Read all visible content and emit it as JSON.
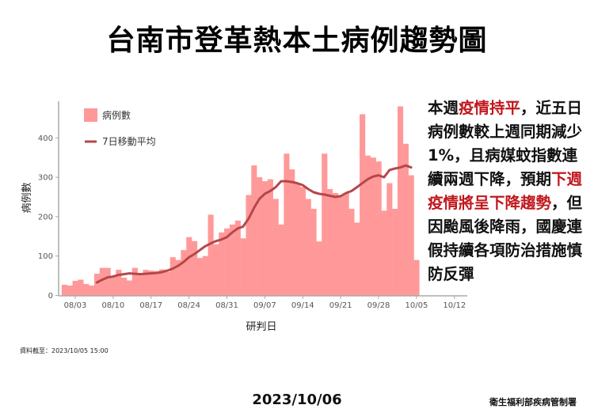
{
  "title": "台南市登革熱本土病例趨勢圖",
  "legend": {
    "bars_label": "病例數",
    "line_label": "7日移動平均"
  },
  "axes": {
    "y_title": "病例數",
    "x_title": "研判日",
    "y_ticks": [
      "0",
      "100",
      "200",
      "300",
      "400"
    ],
    "x_ticks": [
      "08/03",
      "08/10",
      "08/17",
      "08/24",
      "08/31",
      "09/07",
      "09/14",
      "09/21",
      "09/28",
      "10/05",
      "10/12"
    ]
  },
  "side_text": {
    "segments": [
      {
        "text": "本週",
        "red": false
      },
      {
        "text": "疫情持平",
        "red": true
      },
      {
        "text": "，近五日病例數較上週同期減少1%，且病媒蚊指數連續兩週下降，預期",
        "red": false
      },
      {
        "text": "下週疫情將呈下降趨勢",
        "red": true
      },
      {
        "text": "，但因颱風後降雨，國慶連假持續各項防治措施慎防反彈",
        "red": false
      }
    ]
  },
  "footer": {
    "source": "資料截至：2023/10/05 15:00",
    "date": "2023/10/06",
    "org": "衛生福利部疾病管制署"
  },
  "colors": {
    "bar": "#ff9999",
    "line": "#b5474b",
    "axis": "#aaaaaa",
    "highlight_text": "#c0171c"
  },
  "chart_data": {
    "type": "bar",
    "title": "台南市登革熱本土病例趨勢圖",
    "xlabel": "研判日",
    "ylabel": "病例數",
    "ylim": [
      0,
      460
    ],
    "grid": false,
    "legend_position": "top-left inside",
    "start_date": "08/01",
    "end_date": "10/05",
    "x_ticks": [
      "08/03",
      "08/10",
      "08/17",
      "08/24",
      "08/31",
      "09/07",
      "09/14",
      "09/21",
      "09/28",
      "10/05",
      "10/12"
    ],
    "series": [
      {
        "name": "病例數",
        "type": "bar",
        "values": [
          27,
          25,
          37,
          40,
          29,
          25,
          55,
          70,
          70,
          50,
          65,
          45,
          38,
          70,
          55,
          65,
          63,
          62,
          66,
          60,
          97,
          90,
          115,
          148,
          138,
          95,
          100,
          205,
          130,
          160,
          170,
          180,
          190,
          145,
          255,
          330,
          300,
          290,
          295,
          245,
          180,
          360,
          320,
          285,
          275,
          245,
          220,
          137,
          360,
          270,
          260,
          255,
          260,
          220,
          185,
          460,
          355,
          350,
          340,
          215,
          285,
          220,
          480,
          385,
          305,
          90
        ]
      },
      {
        "name": "7日移動平均",
        "type": "line",
        "values": [
          null,
          null,
          null,
          null,
          null,
          null,
          33,
          40,
          46,
          48,
          52,
          54,
          56,
          55,
          54,
          55,
          56,
          57,
          59,
          63,
          68,
          75,
          85,
          97,
          105,
          115,
          125,
          132,
          138,
          142,
          148,
          160,
          170,
          175,
          195,
          222,
          245,
          258,
          265,
          275,
          290,
          290,
          288,
          285,
          280,
          270,
          262,
          258,
          256,
          253,
          250,
          252,
          260,
          265,
          275,
          285,
          295,
          302,
          305,
          300,
          318,
          322,
          325,
          330,
          325,
          null
        ]
      }
    ]
  }
}
